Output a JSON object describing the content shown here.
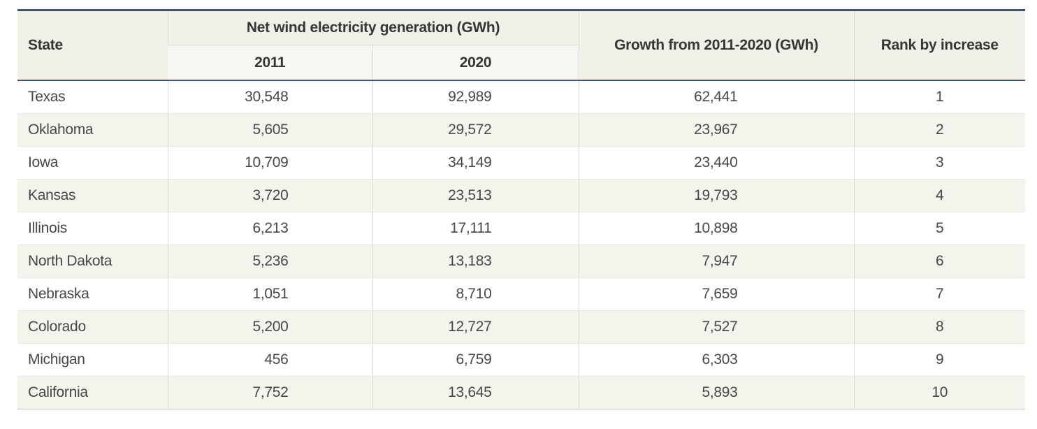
{
  "table": {
    "columns": {
      "state": "State",
      "group": "Net wind electricity generation (GWh)",
      "y2011": "2011",
      "y2020": "2020",
      "growth": "Growth from 2011-2020 (GWh)",
      "rank": "Rank by increase"
    },
    "rows": [
      {
        "state": "Texas",
        "y2011": "30,548",
        "y2020": "92,989",
        "growth": "62,441",
        "rank": "1"
      },
      {
        "state": "Oklahoma",
        "y2011": "5,605",
        "y2020": "29,572",
        "growth": "23,967",
        "rank": "2"
      },
      {
        "state": "Iowa",
        "y2011": "10,709",
        "y2020": "34,149",
        "growth": "23,440",
        "rank": "3"
      },
      {
        "state": "Kansas",
        "y2011": "3,720",
        "y2020": "23,513",
        "growth": "19,793",
        "rank": "4"
      },
      {
        "state": "Illinois",
        "y2011": "6,213",
        "y2020": "17,111",
        "growth": "10,898",
        "rank": "5"
      },
      {
        "state": "North Dakota",
        "y2011": "5,236",
        "y2020": "13,183",
        "growth": "7,947",
        "rank": "6"
      },
      {
        "state": "Nebraska",
        "y2011": "1,051",
        "y2020": "8,710",
        "growth": "7,659",
        "rank": "7"
      },
      {
        "state": "Colorado",
        "y2011": "5,200",
        "y2020": "12,727",
        "growth": "7,527",
        "rank": "8"
      },
      {
        "state": "Michigan",
        "y2011": "456",
        "y2020": "6,759",
        "growth": "6,303",
        "rank": "9"
      },
      {
        "state": "California",
        "y2011": "7,752",
        "y2020": "13,645",
        "growth": "5,893",
        "rank": "10"
      }
    ]
  },
  "colors": {
    "accent_navy": "#3e5277",
    "header_bg": "#f0efe8",
    "subheader_bg": "#f7f6f0",
    "stripe_bg": "#f5f4ec",
    "text": "#474747"
  },
  "chart_data": {
    "type": "table",
    "columns": [
      "State",
      "Net wind electricity generation (GWh) - 2011",
      "Net wind electricity generation (GWh) - 2020",
      "Growth from 2011-2020 (GWh)",
      "Rank by increase"
    ],
    "rows": [
      [
        "Texas",
        30548,
        92989,
        62441,
        1
      ],
      [
        "Oklahoma",
        5605,
        29572,
        23967,
        2
      ],
      [
        "Iowa",
        10709,
        34149,
        23440,
        3
      ],
      [
        "Kansas",
        3720,
        23513,
        19793,
        4
      ],
      [
        "Illinois",
        6213,
        17111,
        10898,
        5
      ],
      [
        "North Dakota",
        5236,
        13183,
        7947,
        6
      ],
      [
        "Nebraska",
        1051,
        8710,
        7659,
        7
      ],
      [
        "Colorado",
        5200,
        12727,
        7527,
        8
      ],
      [
        "Michigan",
        456,
        6759,
        6303,
        9
      ],
      [
        "California",
        7752,
        13645,
        5893,
        10
      ]
    ]
  }
}
